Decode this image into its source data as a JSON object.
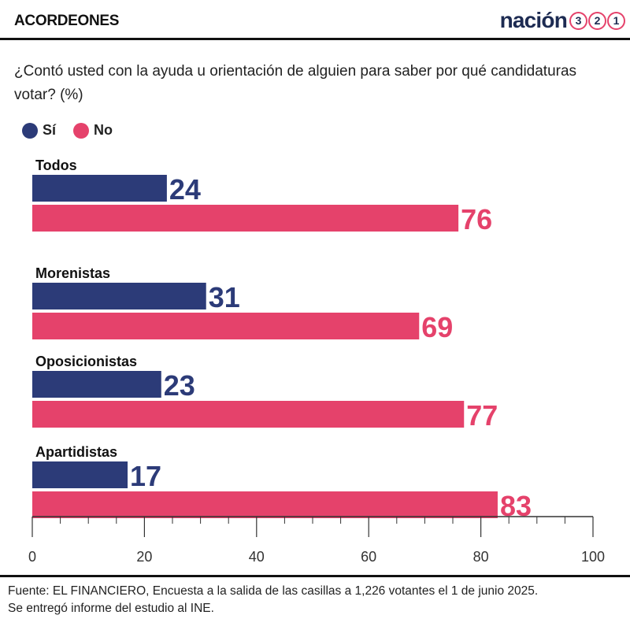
{
  "header": {
    "kicker": "ACORDEONES",
    "brand_word": "nación",
    "brand_digits": [
      "3",
      "2",
      "1"
    ]
  },
  "question": "¿Contó usted con la ayuda u orientación de alguien para saber por qué candidaturas votar? (%)",
  "legend": [
    {
      "label": "Sí",
      "color": "#2c3b78"
    },
    {
      "label": "No",
      "color": "#e5426b"
    }
  ],
  "chart_data": {
    "type": "bar",
    "orientation": "horizontal",
    "categories": [
      "Todos",
      "Morenistas",
      "Oposicionistas",
      "Apartidistas"
    ],
    "series": [
      {
        "name": "Sí",
        "color": "#2c3b78",
        "values": [
          24,
          31,
          23,
          17
        ]
      },
      {
        "name": "No",
        "color": "#e5426b",
        "values": [
          76,
          69,
          77,
          83
        ]
      }
    ],
    "xlim": [
      0,
      100
    ],
    "xticks": [
      0,
      20,
      40,
      60,
      80,
      100
    ],
    "grid": false,
    "legend_position": "top-left"
  },
  "source": {
    "line1": "Fuente: EL FINANCIERO, Encuesta a la salida de las casillas a 1,226 votantes el 1 de junio 2025.",
    "line2": "Se entregó informe del estudio al INE."
  }
}
